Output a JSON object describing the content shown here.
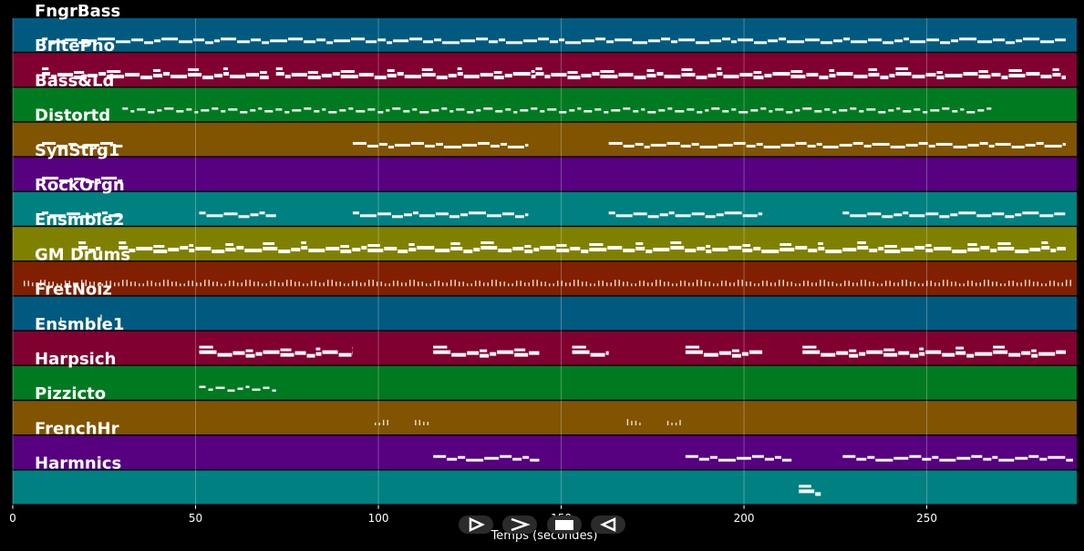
{
  "chart_data": {
    "type": "piano-roll",
    "xlabel": "Temps (secondes)",
    "xlim": [
      0,
      291
    ],
    "xticks": [
      0,
      50,
      100,
      150,
      200,
      250
    ],
    "grid": true,
    "tracks": [
      {
        "name": "FngrBass",
        "color": "#005a80",
        "notes": [
          [
            8,
            288
          ]
        ],
        "style": "dense"
      },
      {
        "name": "BritePno",
        "color": "#800030",
        "notes": [
          [
            8,
            70
          ],
          [
            72,
            143
          ],
          [
            143,
            288
          ]
        ],
        "style": "thick"
      },
      {
        "name": "Bass&Ld",
        "color": "#007a20",
        "notes": [
          [
            30,
            268
          ]
        ],
        "style": "dashed"
      },
      {
        "name": "Distortd",
        "color": "#805400",
        "notes": [
          [
            8,
            30
          ],
          [
            93,
            141
          ],
          [
            163,
            288
          ]
        ],
        "style": "dense"
      },
      {
        "name": "SynStrg1",
        "color": "#570080",
        "notes": [
          [
            8,
            30
          ]
        ],
        "style": "dense"
      },
      {
        "name": "RockOrgn",
        "color": "#008080",
        "notes": [
          [
            8,
            30
          ],
          [
            51,
            72
          ],
          [
            93,
            141
          ],
          [
            163,
            205
          ],
          [
            227,
            288
          ]
        ],
        "style": "dense"
      },
      {
        "name": "Ensmble2",
        "color": "#808000",
        "notes": [
          [
            18,
            24
          ],
          [
            29,
            288
          ]
        ],
        "style": "thick"
      },
      {
        "name": "GM Drums",
        "color": "#802000",
        "notes": [
          [
            3,
            290
          ]
        ],
        "style": "ticks"
      },
      {
        "name": "FretNoiz",
        "color": "#005a80",
        "notes": [
          [
            13,
            13.5
          ],
          [
            24,
            24.5
          ]
        ],
        "style": "ticks"
      },
      {
        "name": "Ensmble1",
        "color": "#800030",
        "notes": [
          [
            51,
            93
          ],
          [
            115,
            144
          ],
          [
            153,
            163
          ],
          [
            184,
            205
          ],
          [
            216,
            288
          ]
        ],
        "style": "thick"
      },
      {
        "name": "Harpsich",
        "color": "#007a20",
        "notes": [
          [
            51,
            72
          ]
        ],
        "style": "dashed"
      },
      {
        "name": "Pizzicto",
        "color": "#805400",
        "notes": [
          [
            99,
            103
          ],
          [
            110,
            114
          ],
          [
            168,
            172
          ],
          [
            179,
            183
          ]
        ],
        "style": "ticks"
      },
      {
        "name": "FrenchHr",
        "color": "#570080",
        "notes": [
          [
            115,
            144
          ],
          [
            184,
            213
          ],
          [
            227,
            290
          ]
        ],
        "style": "dense"
      },
      {
        "name": "Harmnics",
        "color": "#008080",
        "notes": [
          [
            215,
            221
          ]
        ],
        "style": "thick"
      }
    ]
  },
  "controls": [
    {
      "name": "play-forward-button",
      "icon": "play-outline-icon"
    },
    {
      "name": "next-button",
      "icon": "chevron-right-icon"
    },
    {
      "name": "stop-button",
      "icon": "stop-icon"
    },
    {
      "name": "previous-button",
      "icon": "play-reverse-icon"
    }
  ]
}
